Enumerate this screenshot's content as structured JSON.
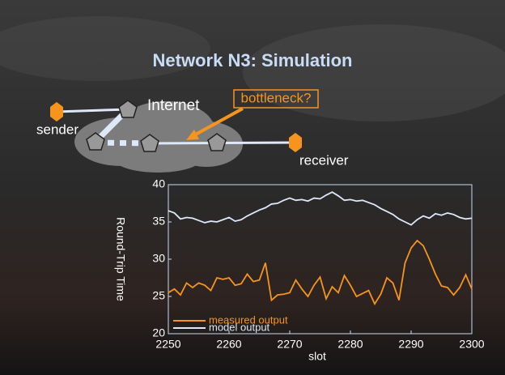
{
  "title": "Network N3: Simulation",
  "diagram": {
    "sender": "sender",
    "internet": "Internet",
    "bottleneck": "bottleneck?",
    "receiver": "receiver"
  },
  "chart_data": {
    "type": "line",
    "xlabel": "slot",
    "ylabel": "Round-Trip Time",
    "x": [
      2250,
      2251,
      2252,
      2253,
      2254,
      2255,
      2256,
      2257,
      2258,
      2259,
      2260,
      2261,
      2262,
      2263,
      2264,
      2265,
      2266,
      2267,
      2268,
      2269,
      2270,
      2271,
      2272,
      2273,
      2274,
      2275,
      2276,
      2277,
      2278,
      2279,
      2280,
      2281,
      2282,
      2283,
      2284,
      2285,
      2286,
      2287,
      2288,
      2289,
      2290,
      2291,
      2292,
      2293,
      2294,
      2295,
      2296,
      2297,
      2298,
      2299,
      2300
    ],
    "series": [
      {
        "name": "measured output",
        "color": "#f7941d",
        "values": [
          25.5,
          26.0,
          25.2,
          26.8,
          26.2,
          26.8,
          26.5,
          25.8,
          27.5,
          27.3,
          27.5,
          26.5,
          26.7,
          28.0,
          27.0,
          27.2,
          29.5,
          24.5,
          25.2,
          25.3,
          25.5,
          27.2,
          26.0,
          25.0,
          26.5,
          27.6,
          24.7,
          26.3,
          25.5,
          27.8,
          26.5,
          25.0,
          25.4,
          25.8,
          24.0,
          25.3,
          27.5,
          26.8,
          24.5,
          29.5,
          31.5,
          32.5,
          31.8,
          30.0,
          28.0,
          26.4,
          26.2,
          25.2,
          26.2,
          27.9,
          26.0
        ]
      },
      {
        "name": "model output",
        "color": "#dde8f8",
        "values": [
          36.5,
          36.2,
          35.4,
          35.6,
          35.5,
          35.2,
          34.9,
          35.1,
          35.0,
          35.3,
          35.6,
          35.1,
          35.3,
          35.8,
          36.2,
          36.6,
          36.9,
          37.4,
          37.5,
          37.9,
          38.2,
          37.9,
          38.0,
          37.8,
          38.2,
          38.1,
          38.6,
          39.0,
          38.5,
          37.9,
          38.0,
          37.8,
          37.9,
          37.6,
          37.3,
          36.8,
          36.4,
          36.0,
          35.4,
          35.0,
          34.6,
          35.3,
          35.8,
          35.5,
          36.1,
          35.9,
          36.2,
          36.0,
          35.6,
          35.4,
          35.5
        ]
      }
    ],
    "xlim": [
      2250,
      2300
    ],
    "xticks": [
      2250,
      2260,
      2270,
      2280,
      2290,
      2300
    ],
    "ylim": [
      20,
      40
    ],
    "yticks": [
      20,
      25,
      30,
      35,
      40
    ],
    "legend": "lower left"
  }
}
